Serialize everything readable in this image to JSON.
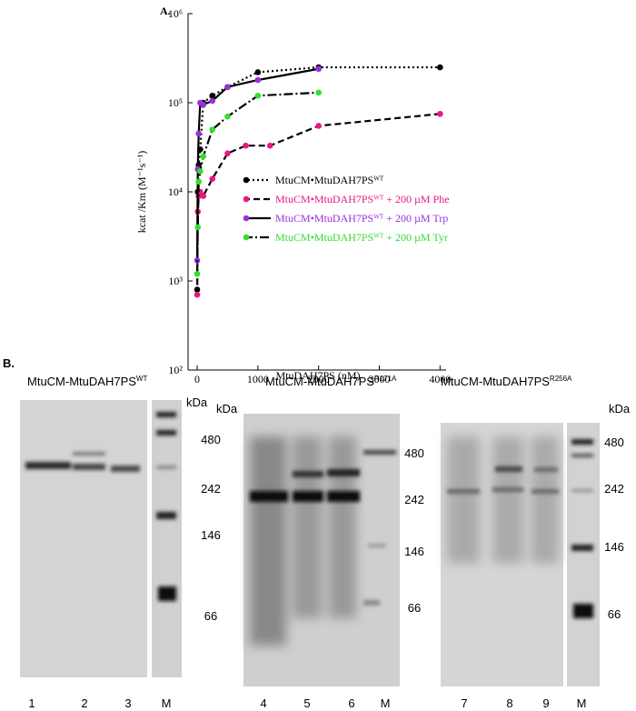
{
  "chart_data": {
    "type": "line",
    "panel": "A.",
    "xlabel": "MtuDAH7PS (nM)",
    "ylabel": "kcat /Km (M⁻¹s⁻¹)",
    "xlim": [
      -150,
      4100
    ],
    "xticks": [
      0,
      1000,
      2000,
      3000,
      4000
    ],
    "ylim": [
      100,
      1000000
    ],
    "log_y": true,
    "yticks": [
      {
        "value": 100,
        "label": "10²"
      },
      {
        "value": 1000,
        "label": "10³"
      },
      {
        "value": 10000,
        "label": "10⁴"
      },
      {
        "value": 100000,
        "label": "10⁵"
      },
      {
        "value": 1000000,
        "label": "10⁶"
      }
    ],
    "legend": "center-right",
    "series": [
      {
        "name": "MtuCM•MtuDAH7PSᵂᵀ",
        "color": "#000000",
        "dash": "2,3",
        "x": [
          0,
          10,
          25,
          50,
          100,
          250,
          500,
          1000,
          2000,
          4000
        ],
        "values": [
          800,
          10000,
          20000,
          30000,
          100000,
          120000,
          150000,
          220000,
          250000,
          250000
        ]
      },
      {
        "name": "MtuCM•MtuDAH7PSᵂᵀ + 200 µM Phe",
        "color": "#e8197d",
        "dash": "7,4",
        "x": [
          0,
          10,
          25,
          50,
          100,
          250,
          500,
          800,
          1200,
          2000,
          4000
        ],
        "values": [
          700,
          6000,
          9000,
          10000,
          9000,
          14000,
          27000,
          33000,
          33000,
          55000,
          75000
        ]
      },
      {
        "name": "MtuCM•MtuDAH7PSᵂᵀ + 200 µM Trp",
        "color": "#9b30d9",
        "dash": "",
        "x": [
          0,
          10,
          25,
          50,
          100,
          250,
          500,
          1000,
          2000
        ],
        "values": [
          1700,
          18000,
          45000,
          100000,
          95000,
          105000,
          150000,
          180000,
          240000
        ]
      },
      {
        "name": "MtuCM•MtuDAH7PSᵂᵀ + 200 µM Tyr",
        "color": "#33dd33",
        "dash": "10,3,2,3",
        "x": [
          0,
          10,
          25,
          50,
          100,
          250,
          500,
          1000,
          2000
        ],
        "values": [
          1200,
          4000,
          13000,
          17000,
          25000,
          50000,
          70000,
          120000,
          130000
        ]
      }
    ]
  },
  "panel_b": {
    "label": "B.",
    "kda": "kDa",
    "gels": [
      {
        "title": "MtuCM-MtuDAH7PS",
        "sup": "WT",
        "lanes": [
          "1",
          "2",
          "3",
          "M"
        ],
        "markers": [
          "480",
          "242",
          "146",
          "66"
        ]
      },
      {
        "title": "MtuCM-MtuDAH7PS",
        "sup": "R171A",
        "lanes": [
          "4",
          "5",
          "6",
          "M"
        ],
        "markers": [
          "480",
          "242",
          "146",
          "66"
        ]
      },
      {
        "title": "MtuCM-MtuDAH7PS",
        "sup": "R256A",
        "lanes": [
          "7",
          "8",
          "9",
          "M"
        ],
        "markers": [
          "480",
          "242",
          "146",
          "66"
        ]
      }
    ]
  }
}
